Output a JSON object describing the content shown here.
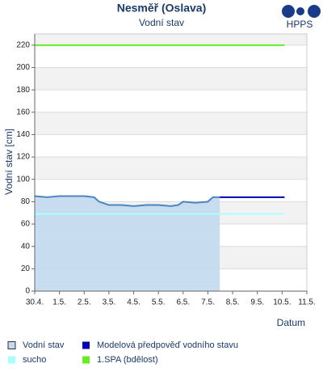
{
  "chart_data": {
    "type": "line",
    "title": "Nesměř (Oslava)",
    "subtitle": "Vodní stav",
    "logo": "HPPS",
    "y_label": "Vodní stav [cm]",
    "x_label": "Datum",
    "xlim": [
      0,
      11
    ],
    "xticks": [
      {
        "value": 0,
        "label": "30.4."
      },
      {
        "value": 1,
        "label": "1.5."
      },
      {
        "value": 2,
        "label": "2.5."
      },
      {
        "value": 3,
        "label": "3.5."
      },
      {
        "value": 4,
        "label": "4.5."
      },
      {
        "value": 5,
        "label": "5.5."
      },
      {
        "value": 6,
        "label": "6.5."
      },
      {
        "value": 7,
        "label": "7.5."
      },
      {
        "value": 8,
        "label": "8.5."
      },
      {
        "value": 9,
        "label": "9.5."
      },
      {
        "value": 10,
        "label": "10.5."
      },
      {
        "value": 11,
        "label": "11.5."
      }
    ],
    "ylim": [
      0,
      230
    ],
    "yticks": [
      0,
      20,
      40,
      60,
      80,
      100,
      120,
      140,
      160,
      180,
      200,
      220
    ],
    "grid": true,
    "series": [
      {
        "name": "Vodní stav",
        "color": "#4a86c0",
        "area": true,
        "fill": "#c3d9f0",
        "x": [
          0,
          0.5,
          1,
          1.5,
          2,
          2.4,
          2.6,
          3,
          3.5,
          4,
          4.5,
          5,
          5.5,
          5.8,
          6,
          6.5,
          7,
          7.2,
          7.48
        ],
        "values": [
          85,
          84,
          85,
          85,
          85,
          84,
          80,
          77,
          77,
          76,
          77,
          77,
          76,
          77,
          80,
          79,
          80,
          84,
          84
        ]
      },
      {
        "name": "Modelová předpověď vodního stavu",
        "color": "#0000b4",
        "x": [
          7.48,
          10.1
        ],
        "values": [
          84,
          84
        ]
      },
      {
        "name": "sucho",
        "color": "#aaffff",
        "x": [
          0,
          10.1
        ],
        "values": [
          69,
          69
        ]
      },
      {
        "name": "1.SPA (bdělost)",
        "color": "#66ee22",
        "x": [
          0,
          10.1
        ],
        "values": [
          220,
          220
        ]
      }
    ]
  }
}
